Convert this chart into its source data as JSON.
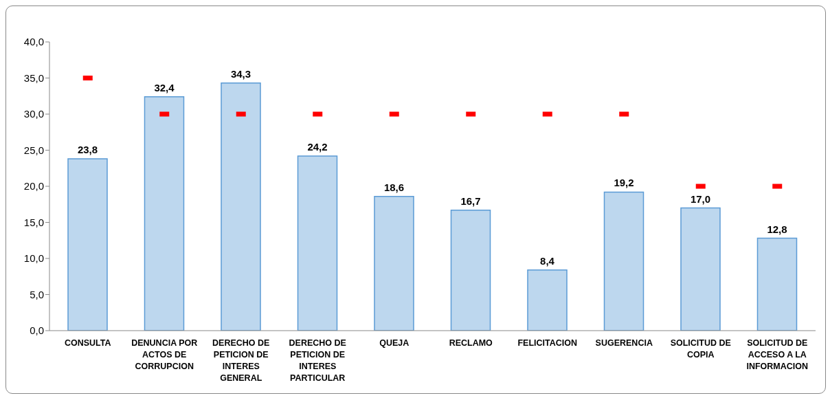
{
  "chart_data": {
    "type": "bar",
    "categories": [
      "CONSULTA",
      "DENUNCIA POR ACTOS DE CORRUPCION",
      "DERECHO DE PETICION DE INTERES GENERAL",
      "DERECHO DE PETICION DE INTERES PARTICULAR",
      "QUEJA",
      "RECLAMO",
      "FELICITACION",
      "SUGERENCIA",
      "SOLICITUD DE COPIA",
      "SOLICITUD DE ACCESO A LA INFORMACION"
    ],
    "series": [
      {
        "type": "bar",
        "color": "#bdd7ee",
        "values": [
          23.8,
          32.4,
          34.3,
          24.2,
          18.6,
          16.7,
          8.4,
          19.2,
          17.0,
          12.8
        ],
        "value_labels": [
          "23,8",
          "32,4",
          "34,3",
          "24,2",
          "18,6",
          "16,7",
          "8,4",
          "19,2",
          "17,0",
          "12,8"
        ]
      },
      {
        "type": "scatter",
        "color": "#ff0000",
        "x": [
          "CONSULTA",
          "DENUNCIA POR ACTOS DE CORRUPCION",
          "DERECHO DE PETICION DE INTERES GENERAL",
          "DERECHO DE PETICION DE INTERES PARTICULAR",
          "QUEJA",
          "RECLAMO",
          "FELICITACION",
          "SUGERENCIA",
          "SOLICITUD DE COPIA",
          "SOLICITUD DE ACCESO A LA INFORMACION"
        ],
        "values": [
          35,
          30,
          30,
          30,
          30,
          30,
          30,
          30,
          20,
          20
        ]
      }
    ],
    "ylim": [
      0,
      40
    ],
    "yticks": [
      {
        "value": 0,
        "label": "0,0"
      },
      {
        "value": 5,
        "label": "5,0"
      },
      {
        "value": 10,
        "label": "10,0"
      },
      {
        "value": 15,
        "label": "15,0"
      },
      {
        "value": 20,
        "label": "20,0"
      },
      {
        "value": 25,
        "label": "25,0"
      },
      {
        "value": 30,
        "label": "30,0"
      },
      {
        "value": 35,
        "label": "35,0"
      },
      {
        "value": 40,
        "label": "40,0"
      }
    ],
    "grid": false,
    "legend": false
  }
}
